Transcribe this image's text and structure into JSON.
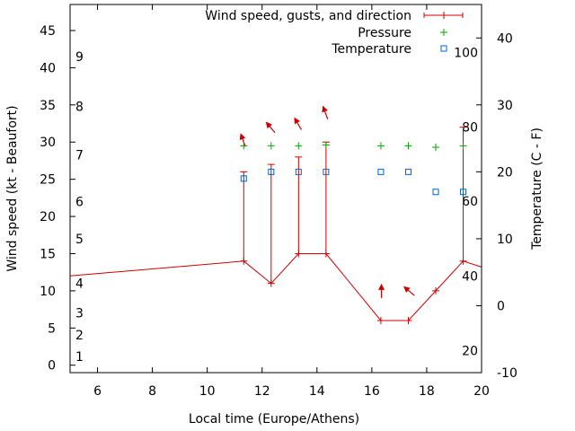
{
  "chart_data": {
    "type": "line",
    "xlabel": "Local time (Europe/Athens)",
    "ylabel_left": "Wind speed (kt - Beaufort)",
    "ylabel_right": "Temperature (C - F)",
    "xlim": [
      5,
      20
    ],
    "ylim_left": [
      -1,
      48.5
    ],
    "ylim_right": [
      -10,
      45
    ],
    "x_ticks": [
      6,
      8,
      10,
      12,
      14,
      16,
      18,
      20
    ],
    "y_ticks_left": [
      0,
      5,
      10,
      15,
      20,
      25,
      30,
      35,
      40,
      45
    ],
    "y_ticks_right": [
      -10,
      0,
      10,
      20,
      30,
      40
    ],
    "beaufort_labels": [
      {
        "label": "1",
        "value": 1.2
      },
      {
        "label": "2",
        "value": 4.1
      },
      {
        "label": "3",
        "value": 7.0
      },
      {
        "label": "4",
        "value": 11.0
      },
      {
        "label": "5",
        "value": 17.0
      },
      {
        "label": "6",
        "value": 22.0
      },
      {
        "label": "7",
        "value": 28.3
      },
      {
        "label": "8",
        "value": 34.8
      },
      {
        "label": "9",
        "value": 41.5
      }
    ],
    "fahrenheit_labels": [
      {
        "label": "20",
        "celsius": -6.7
      },
      {
        "label": "40",
        "celsius": 4.4
      },
      {
        "label": "60",
        "celsius": 15.6
      },
      {
        "label": "80",
        "celsius": 26.7
      },
      {
        "label": "100",
        "celsius": 37.8
      }
    ],
    "legend": [
      {
        "label": "Wind speed, gusts, and direction",
        "color": "#cc0000",
        "marker": "line-plus"
      },
      {
        "label": "Pressure",
        "color": "#00aa00",
        "marker": "plus"
      },
      {
        "label": "Temperature",
        "color": "#0066cc",
        "marker": "square"
      }
    ],
    "series": {
      "wind": {
        "name": "Wind speed, gusts, and direction",
        "color": "#cc0000",
        "entry_edge": {
          "x": 5,
          "y": 12
        },
        "exit_edge": {
          "x": 20,
          "y": 13.2
        },
        "points": [
          {
            "x": 11.33,
            "y": 14,
            "gust": 26
          },
          {
            "x": 12.33,
            "y": 11,
            "gust": 27
          },
          {
            "x": 13.33,
            "y": 15,
            "gust": 28
          },
          {
            "x": 14.33,
            "y": 15,
            "gust": 30
          },
          {
            "x": 16.33,
            "y": 6
          },
          {
            "x": 17.33,
            "y": 6
          },
          {
            "x": 18.33,
            "y": 10
          },
          {
            "x": 19.33,
            "y": 14,
            "gust": 32
          }
        ]
      },
      "direction_arrows": [
        {
          "x": 11.3,
          "y": 30.3,
          "angle": -110
        },
        {
          "x": 12.3,
          "y": 32.0,
          "angle": -130
        },
        {
          "x": 13.3,
          "y": 32.5,
          "angle": -120
        },
        {
          "x": 14.3,
          "y": 34.0,
          "angle": -110
        },
        {
          "x": 16.35,
          "y": 10.0,
          "angle": -90
        },
        {
          "x": 17.35,
          "y": 10.0,
          "angle": -140
        }
      ],
      "pressure": {
        "name": "Pressure",
        "color": "#00aa00",
        "points": [
          {
            "x": 11.33,
            "y": 29.5
          },
          {
            "x": 12.33,
            "y": 29.5
          },
          {
            "x": 13.33,
            "y": 29.5
          },
          {
            "x": 14.33,
            "y": 29.6
          },
          {
            "x": 16.33,
            "y": 29.5
          },
          {
            "x": 17.33,
            "y": 29.5
          },
          {
            "x": 18.33,
            "y": 29.3
          },
          {
            "x": 19.33,
            "y": 29.5
          }
        ]
      },
      "temperature": {
        "name": "Temperature",
        "color": "#0066cc",
        "points": [
          {
            "x": 11.33,
            "y": 19
          },
          {
            "x": 12.33,
            "y": 20
          },
          {
            "x": 13.33,
            "y": 20
          },
          {
            "x": 14.33,
            "y": 20
          },
          {
            "x": 16.33,
            "y": 20
          },
          {
            "x": 17.33,
            "y": 20
          },
          {
            "x": 18.33,
            "y": 17
          },
          {
            "x": 19.33,
            "y": 17
          }
        ]
      }
    }
  }
}
